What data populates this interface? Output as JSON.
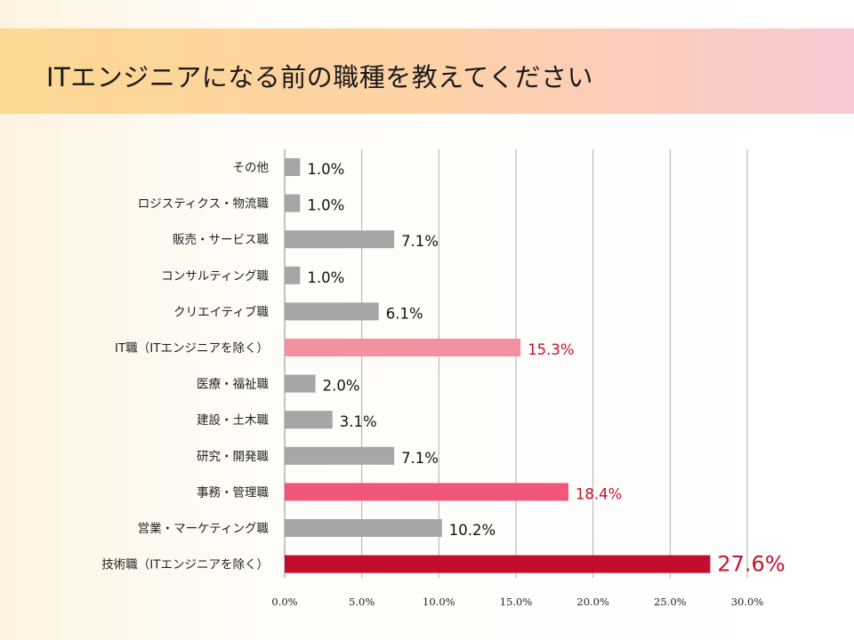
{
  "page": {
    "title": "ITエンジニアになる前の職種を教えてください"
  },
  "colors": {
    "bar_default": "#a6a6a6",
    "bar_highlight_1": "#f4919f",
    "bar_highlight_2": "#f0557a",
    "bar_highlight_top": "#c40d2e",
    "value_highlight_text": "#c4122f",
    "gridline": "#b0b0b0"
  },
  "chart_data": {
    "type": "bar",
    "orientation": "horizontal",
    "title": "ITエンジニアになる前の職種を教えてください",
    "xlabel": "",
    "ylabel": "",
    "xlim": [
      0,
      30
    ],
    "x_ticks": [
      "0.0%",
      "5.0%",
      "10.0%",
      "15.0%",
      "20.0%",
      "25.0%",
      "30.0%"
    ],
    "grid": true,
    "categories": [
      "その他",
      "ロジスティクス・物流職",
      "販売・サービス職",
      "コンサルティング職",
      "クリエイティブ職",
      "IT職（ITエンジニアを除く）",
      "医療・福祉職",
      "建設・土木職",
      "研究・開発職",
      "事務・管理職",
      "営業・マーケティング職",
      "技術職（ITエンジニアを除く）"
    ],
    "values": [
      1.0,
      1.0,
      7.1,
      1.0,
      6.1,
      15.3,
      2.0,
      3.1,
      7.1,
      18.4,
      10.2,
      27.6
    ],
    "value_labels": [
      "1.0%",
      "1.0%",
      "7.1%",
      "1.0%",
      "6.1%",
      "15.3%",
      "2.0%",
      "3.1%",
      "7.1%",
      "18.4%",
      "10.2%",
      "27.6%"
    ],
    "highlight": [
      "",
      "",
      "",
      "",
      "",
      "hl1",
      "",
      "",
      "",
      "hl2",
      "",
      "top"
    ]
  }
}
